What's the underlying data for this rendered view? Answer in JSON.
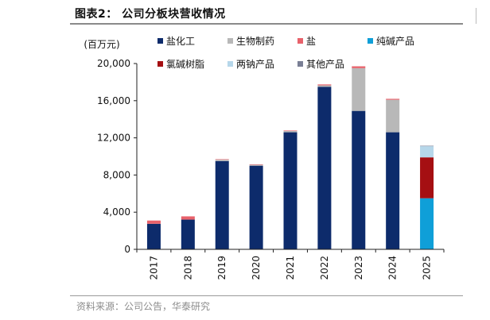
{
  "figure": {
    "title": "图表2： 公司分板块营收情况",
    "source": "资料来源：公司公告，华泰研究"
  },
  "chart_data": {
    "type": "bar",
    "stacked": true,
    "unit_label": "(百万元)",
    "categories": [
      "2017",
      "2018",
      "2019",
      "2020",
      "2021",
      "2022",
      "2023",
      "2024",
      "2025"
    ],
    "ylim": [
      0,
      20000
    ],
    "yticks": [
      0,
      4000,
      8000,
      12000,
      16000,
      20000
    ],
    "ytick_labels": [
      "0",
      "4,000",
      "8,000",
      "12,000",
      "16,000",
      "20,000"
    ],
    "grid": false,
    "legend_placement": "top",
    "series": [
      {
        "name": "盐化工",
        "color": "#0d2b6b",
        "values": [
          2750,
          3200,
          9500,
          9000,
          12600,
          17500,
          14900,
          12600,
          0
        ]
      },
      {
        "name": "生物制药",
        "color": "#b8b8b8",
        "values": [
          0,
          0,
          150,
          100,
          150,
          150,
          4600,
          3500,
          0
        ]
      },
      {
        "name": "盐",
        "color": "#e8626b",
        "values": [
          350,
          350,
          50,
          50,
          50,
          100,
          200,
          100,
          0
        ]
      },
      {
        "name": "纯碱产品",
        "color": "#0f9fd8",
        "values": [
          0,
          0,
          0,
          0,
          0,
          0,
          0,
          0,
          5500
        ]
      },
      {
        "name": "氯碱树脂",
        "color": "#a50f12",
        "values": [
          0,
          0,
          0,
          0,
          0,
          0,
          0,
          0,
          4400
        ]
      },
      {
        "name": "两钠产品",
        "color": "#b6d7ea",
        "values": [
          0,
          0,
          0,
          0,
          0,
          0,
          0,
          0,
          1200
        ]
      },
      {
        "name": "其他产品",
        "color": "#7a7f95",
        "values": [
          0,
          0,
          0,
          0,
          0,
          0,
          0,
          0,
          50
        ]
      }
    ]
  }
}
